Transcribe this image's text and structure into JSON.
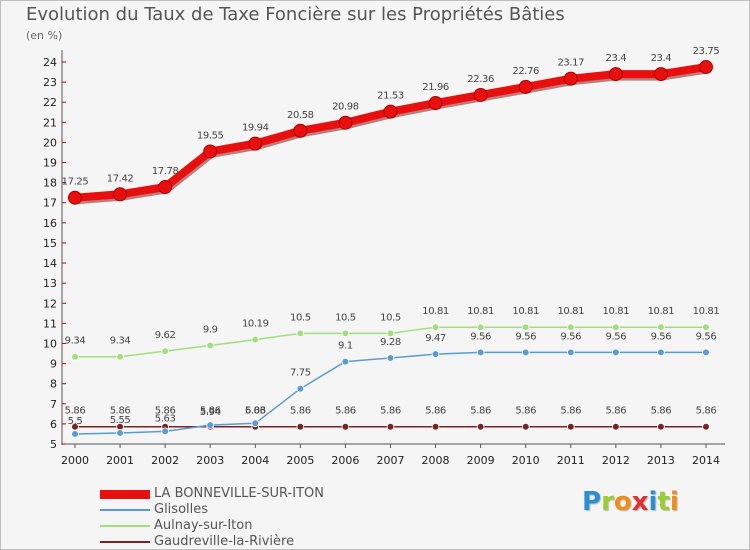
{
  "header": {
    "title": "Evolution du Taux de Taxe Foncière sur les Propriétés Bâties",
    "subtitle": "(en %)"
  },
  "logo": {
    "text": "Proxiti",
    "letters": [
      {
        "ch": "P",
        "color": "#2a8fd4"
      },
      {
        "ch": "r",
        "color": "#9acd32"
      },
      {
        "ch": "o",
        "color": "#f08c1a"
      },
      {
        "ch": "x",
        "color": "#e03030"
      },
      {
        "ch": "i",
        "color": "#2a8fd4"
      },
      {
        "ch": "t",
        "color": "#9acd32"
      },
      {
        "ch": "i",
        "color": "#f08c1a"
      }
    ]
  },
  "chart_data": {
    "type": "line",
    "title": "Evolution du Taux de Taxe Foncière sur les Propriétés Bâties",
    "ylabel": "(en %)",
    "xlabel": "",
    "x": [
      "2000",
      "2001",
      "2002",
      "2003",
      "2004",
      "2005",
      "2006",
      "2007",
      "2008",
      "2009",
      "2010",
      "2011",
      "2012",
      "2013",
      "2014"
    ],
    "ylim": [
      5,
      24
    ],
    "yticks": [
      5,
      6,
      7,
      8,
      9,
      10,
      11,
      12,
      13,
      14,
      15,
      16,
      17,
      18,
      19,
      20,
      21,
      22,
      23,
      24
    ],
    "grid": false,
    "legend": "bottom-left",
    "series": [
      {
        "name": "LA BONNEVILLE-SUR-ITON",
        "color": "#e8100f",
        "values": [
          17.25,
          17.42,
          17.78,
          19.55,
          19.94,
          20.58,
          20.98,
          21.53,
          21.96,
          22.36,
          22.76,
          23.17,
          23.4,
          23.4,
          23.75
        ],
        "labels": [
          "17.25",
          "17.42",
          "17.78",
          "19.55",
          "19.94",
          "20.58",
          "20.98",
          "21.53",
          "21.96",
          "22.36",
          "22.76",
          "23.17",
          "23.4",
          "23.4",
          "23.75"
        ]
      },
      {
        "name": "Glisolles",
        "color": "#5b9bd5",
        "values": [
          5.5,
          5.55,
          5.63,
          5.94,
          6.03,
          7.75,
          9.1,
          9.28,
          9.47,
          9.56,
          9.56,
          9.56,
          9.56,
          9.56,
          9.56
        ],
        "labels": [
          "5.5",
          "5.55",
          "5.63",
          "5.94",
          "6.03",
          "7.75",
          "9.1",
          "9.28",
          "9.47",
          "9.56",
          "9.56",
          "9.56",
          "9.56",
          "9.56",
          "9.56"
        ]
      },
      {
        "name": "Aulnay-sur-Iton",
        "color": "#9fe07c",
        "values": [
          9.34,
          9.34,
          9.62,
          9.9,
          10.19,
          10.5,
          10.5,
          10.5,
          10.81,
          10.81,
          10.81,
          10.81,
          10.81,
          10.81,
          10.81
        ],
        "labels": [
          "9.34",
          "9.34",
          "9.62",
          "9.9",
          "10.19",
          "10.5",
          "10.5",
          "10.5",
          "10.81",
          "10.81",
          "10.81",
          "10.81",
          "10.81",
          "10.81",
          "10.81"
        ]
      },
      {
        "name": "Gaudreville-la-Rivière",
        "color": "#7a2323",
        "values": [
          5.86,
          5.86,
          5.86,
          5.86,
          5.86,
          5.86,
          5.86,
          5.86,
          5.86,
          5.86,
          5.86,
          5.86,
          5.86,
          5.86,
          5.86
        ],
        "labels": [
          "5.86",
          "5.86",
          "5.86",
          "5.86",
          "5.86",
          "5.86",
          "5.86",
          "5.86",
          "5.86",
          "5.86",
          "5.86",
          "5.86",
          "5.86",
          "5.86",
          "5.86"
        ]
      }
    ]
  }
}
